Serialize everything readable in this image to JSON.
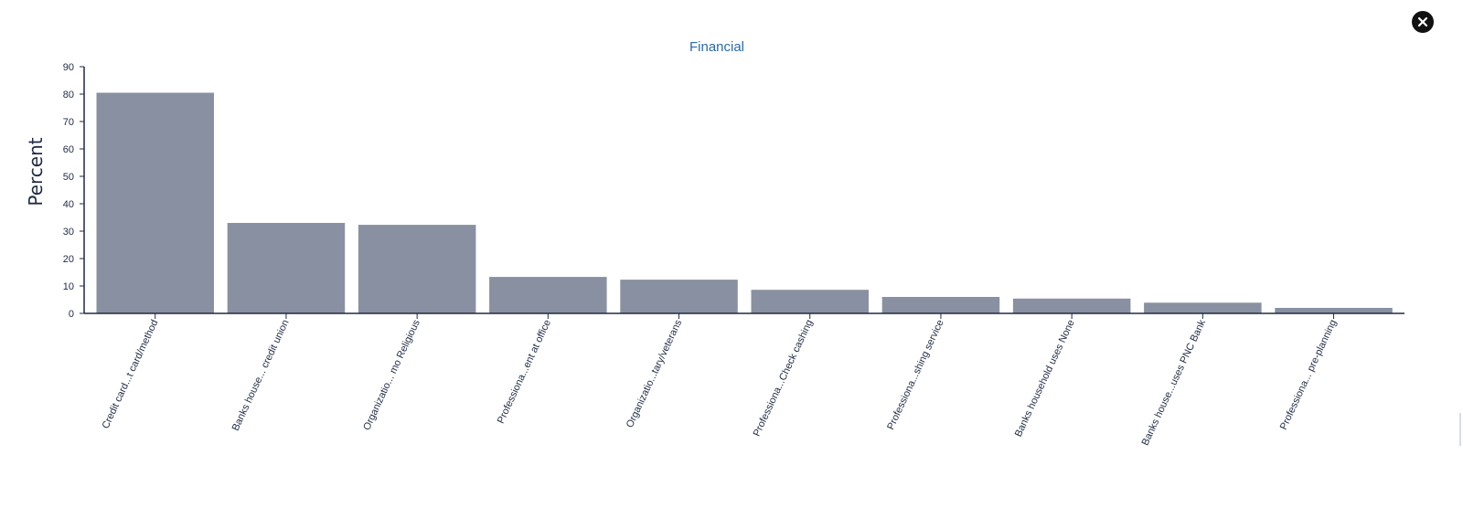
{
  "close_icon": "close-icon",
  "colors": {
    "bar": "#8990a1",
    "axis": "#1f2a44",
    "title": "#2b6aa8",
    "close_bg": "#111111"
  },
  "chart_data": {
    "type": "bar",
    "title": "Financial",
    "xlabel": "",
    "ylabel": "Percent",
    "ylim": [
      0,
      90
    ],
    "yticks": [
      0,
      10,
      20,
      30,
      40,
      50,
      60,
      70,
      80,
      90
    ],
    "categories": [
      "Credit card...t card/method",
      "Banks house... credit union",
      "Organizatio... mo Religious",
      "Professiona...ent at office",
      "Organizatio...tary/veterans",
      "Professiona...Check cashing",
      "Professiona...shing service",
      "Banks household uses None",
      "Banks house...uses PNC Bank",
      "Professiona... pre-planning"
    ],
    "values": [
      80.5,
      33.0,
      32.3,
      13.3,
      12.3,
      8.6,
      6.0,
      5.4,
      3.9,
      2.0
    ],
    "grid": false,
    "legend": "none"
  }
}
